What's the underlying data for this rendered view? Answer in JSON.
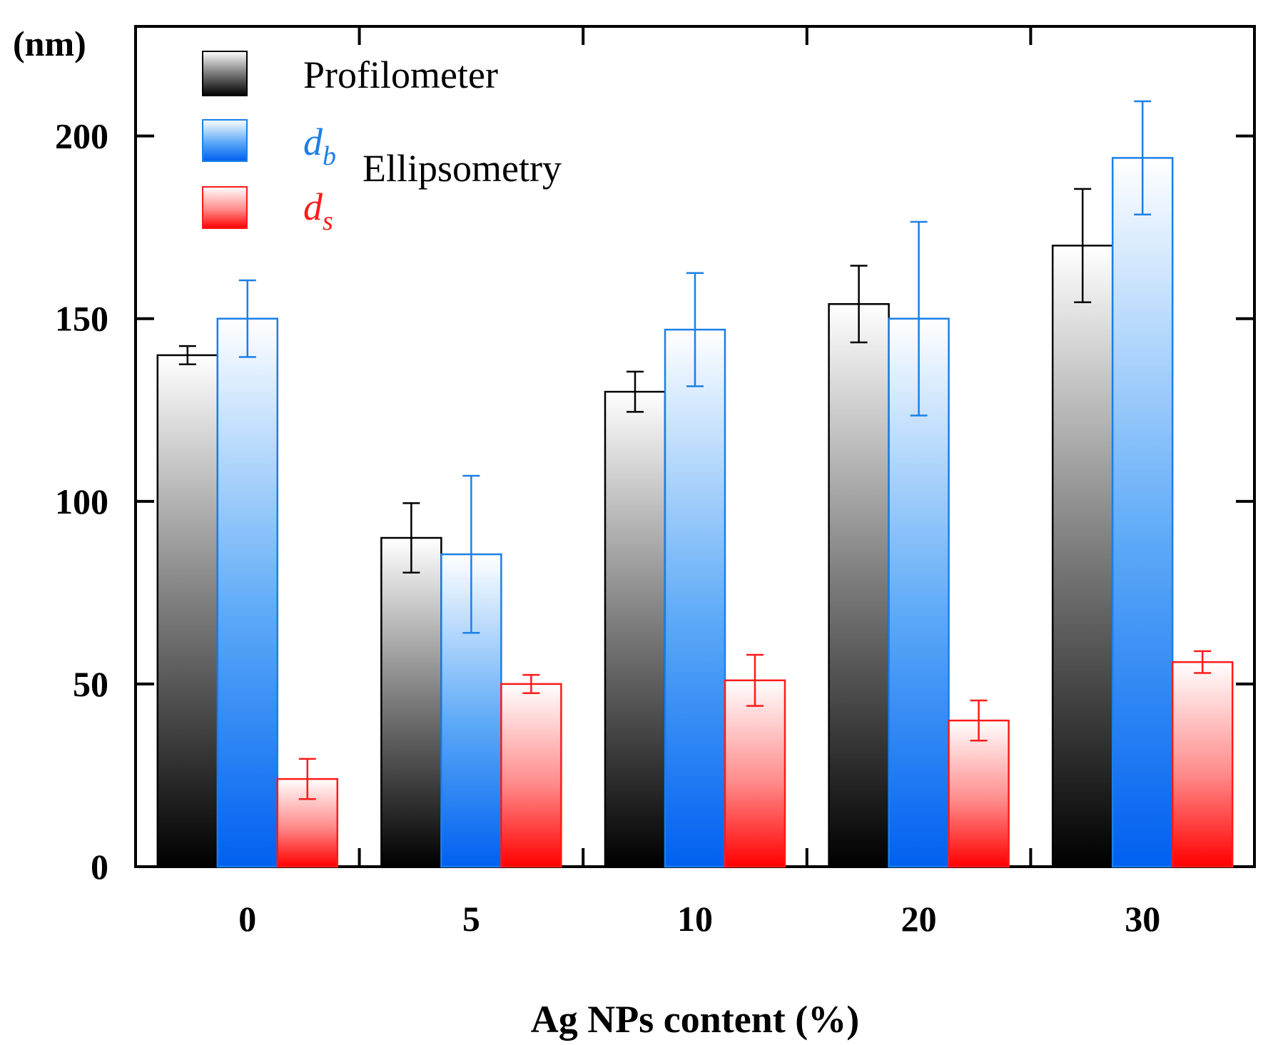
{
  "chart_data": {
    "type": "bar",
    "title": "",
    "unit_label": "(nm)",
    "xlabel": "Ag NPs content (%)",
    "ylabel": "",
    "categories": [
      "0",
      "5",
      "10",
      "20",
      "30"
    ],
    "ylim": [
      0,
      230
    ],
    "yticks": [
      "0",
      "50",
      "100",
      "150",
      "200"
    ],
    "grid": false,
    "legend_position": "top-left",
    "series": [
      {
        "name": "Profilometer",
        "color": "#000000",
        "values": [
          140,
          90,
          130,
          154,
          170
        ],
        "errors": [
          2.5,
          9.5,
          5.5,
          10.5,
          15.5
        ]
      },
      {
        "name": "d_b",
        "color": "#1a7fe8",
        "values": [
          150,
          85.5,
          147,
          150,
          194
        ],
        "errors": [
          10.5,
          21.5,
          15.5,
          26.5,
          15.5
        ]
      },
      {
        "name": "d_s",
        "color": "#ff1a1a",
        "values": [
          24,
          50,
          51,
          40,
          56
        ],
        "errors": [
          5.5,
          2.5,
          7,
          5.5,
          3
        ]
      }
    ],
    "legend": {
      "profilometer": "Profilometer",
      "db_main": "d",
      "db_sub": "b",
      "ds_main": "d",
      "ds_sub": "s",
      "group_label": "Ellipsometry"
    }
  }
}
